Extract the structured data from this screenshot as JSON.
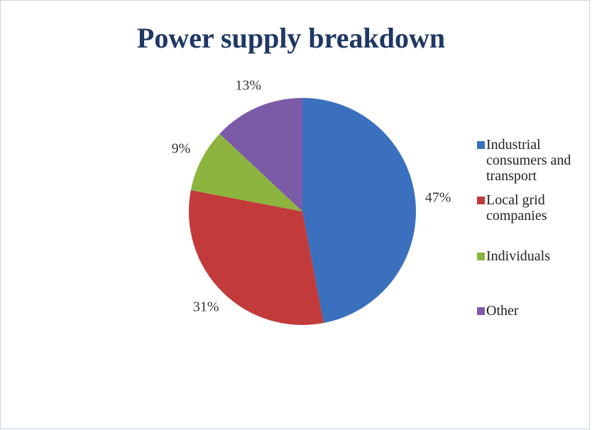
{
  "chart_data": {
    "type": "pie",
    "title": "Power supply breakdown",
    "categories": [
      "Industrial consumers and transport",
      "Local grid companies",
      "Individuals",
      "Other"
    ],
    "values": [
      47,
      31,
      9,
      13
    ],
    "value_labels": [
      "47%",
      "31%",
      "9%",
      "13%"
    ],
    "colors": [
      "#3b70bf",
      "#c23a3a",
      "#8db43e",
      "#7b5aa8"
    ],
    "legend": "right"
  }
}
